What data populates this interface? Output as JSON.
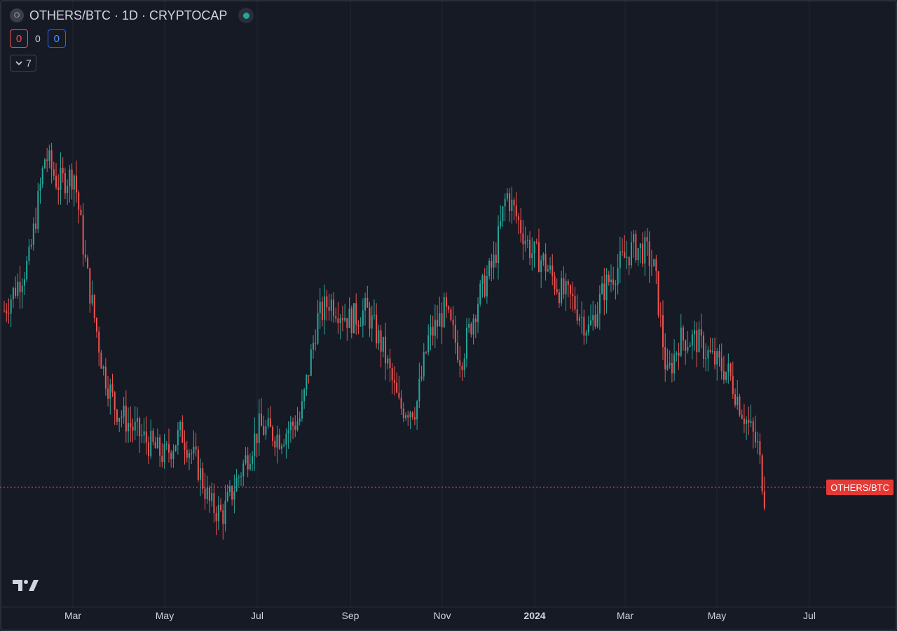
{
  "header": {
    "symbol_logo": "O",
    "title": "OTHERS/BTC · 1D · CRYPTOCAP",
    "status_icon": "live-dot-icon"
  },
  "ohlc": {
    "left_value": "0",
    "mid_value": "0",
    "right_value": "0"
  },
  "indicators": {
    "count": "7",
    "toggle_icon": "chevron-down-icon"
  },
  "price_label": "OTHERS/BTC",
  "logo": "tradingview-logo",
  "colors": {
    "background": "#161a25",
    "up": "#26a69a",
    "down": "#ef5350",
    "grid": "#232733",
    "price_line": "#ef5350"
  },
  "chart_data": {
    "type": "candlestick",
    "title": "OTHERS/BTC · 1D · CRYPTOCAP",
    "x_tick_labels": [
      "Mar",
      "May",
      "Jul",
      "Sep",
      "Nov",
      "2024",
      "Mar",
      "May",
      "Jul"
    ],
    "bold_ticks": [
      "2024"
    ],
    "x_range": [
      "2023-02",
      "2024-07"
    ],
    "grid": true,
    "price_line_label": "OTHERS/BTC",
    "price_trend": "sampled closes in relative units (0-100, higher = higher price)",
    "trend_points": [
      [
        0,
        50
      ],
      [
        0.03,
        60
      ],
      [
        0.05,
        82
      ],
      [
        0.065,
        76
      ],
      [
        0.085,
        78
      ],
      [
        0.1,
        58
      ],
      [
        0.12,
        38
      ],
      [
        0.135,
        30
      ],
      [
        0.155,
        26
      ],
      [
        0.18,
        22
      ],
      [
        0.195,
        20
      ],
      [
        0.215,
        25
      ],
      [
        0.235,
        18
      ],
      [
        0.25,
        10
      ],
      [
        0.265,
        8
      ],
      [
        0.285,
        16
      ],
      [
        0.31,
        26
      ],
      [
        0.335,
        24
      ],
      [
        0.36,
        28
      ],
      [
        0.38,
        48
      ],
      [
        0.395,
        52
      ],
      [
        0.42,
        48
      ],
      [
        0.44,
        50
      ],
      [
        0.46,
        42
      ],
      [
        0.48,
        30
      ],
      [
        0.5,
        30
      ],
      [
        0.515,
        44
      ],
      [
        0.535,
        50
      ],
      [
        0.555,
        40
      ],
      [
        0.575,
        52
      ],
      [
        0.595,
        60
      ],
      [
        0.61,
        74
      ],
      [
        0.625,
        68
      ],
      [
        0.64,
        62
      ],
      [
        0.655,
        60
      ],
      [
        0.675,
        54
      ],
      [
        0.69,
        52
      ],
      [
        0.71,
        46
      ],
      [
        0.73,
        55
      ],
      [
        0.75,
        60
      ],
      [
        0.765,
        63
      ],
      [
        0.78,
        62
      ],
      [
        0.79,
        58
      ],
      [
        0.805,
        36
      ],
      [
        0.82,
        44
      ],
      [
        0.84,
        44
      ],
      [
        0.86,
        40
      ],
      [
        0.88,
        37
      ],
      [
        0.895,
        30
      ],
      [
        0.905,
        26
      ],
      [
        0.915,
        22
      ],
      [
        0.925,
        10
      ]
    ]
  }
}
